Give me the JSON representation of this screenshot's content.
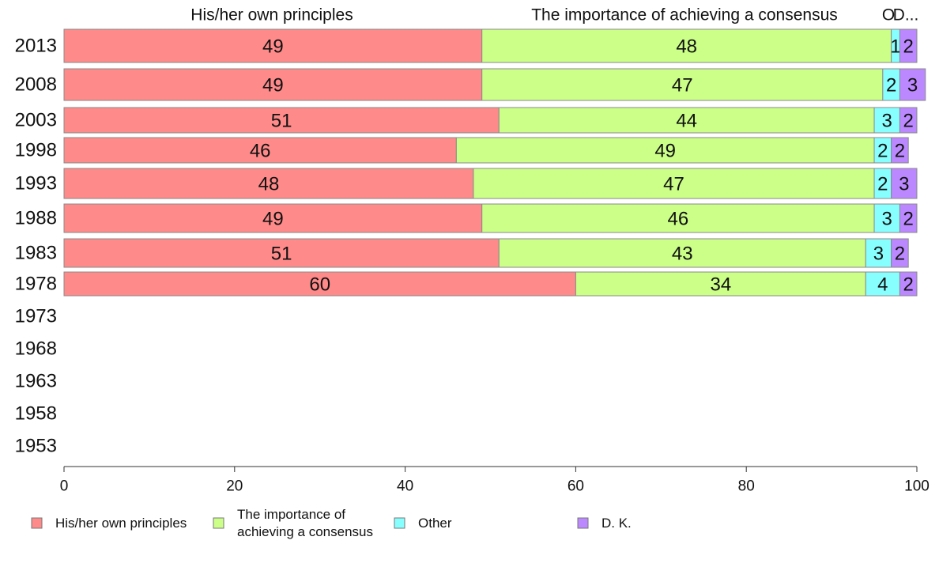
{
  "chart_data": {
    "type": "bar",
    "orientation": "horizontal",
    "stacked": true,
    "categories": [
      "2013",
      "2008",
      "2003",
      "1998",
      "1993",
      "1988",
      "1983",
      "1978",
      "1973",
      "1968",
      "1963",
      "1958",
      "1953"
    ],
    "series": [
      {
        "name": "His/her own principles",
        "color": "#ff8a8a",
        "values": [
          49,
          49,
          51,
          46,
          48,
          49,
          51,
          60,
          null,
          null,
          null,
          null,
          null
        ]
      },
      {
        "name": "The importance of achieving a consensus",
        "color": "#ccff88",
        "values": [
          48,
          47,
          44,
          49,
          47,
          46,
          43,
          34,
          null,
          null,
          null,
          null,
          null
        ]
      },
      {
        "name": "Other",
        "color": "#88ffff",
        "values": [
          1,
          2,
          3,
          2,
          2,
          3,
          3,
          4,
          null,
          null,
          null,
          null,
          null
        ]
      },
      {
        "name": "D. K.",
        "color": "#bb88ff",
        "values": [
          2,
          3,
          2,
          2,
          3,
          2,
          2,
          2,
          null,
          null,
          null,
          null,
          null
        ]
      }
    ],
    "column_headers": [
      "His/her own principles",
      "The importance of achieving a consensus",
      "O",
      "D..."
    ],
    "legend_labels": [
      "His/her own principles",
      "The importance of\nachieving a consensus",
      "Other",
      "D. K."
    ],
    "xlim": [
      0,
      100
    ],
    "xticks": [
      0,
      20,
      40,
      60,
      80,
      100
    ],
    "grid": false,
    "legend_position": "bottom"
  }
}
